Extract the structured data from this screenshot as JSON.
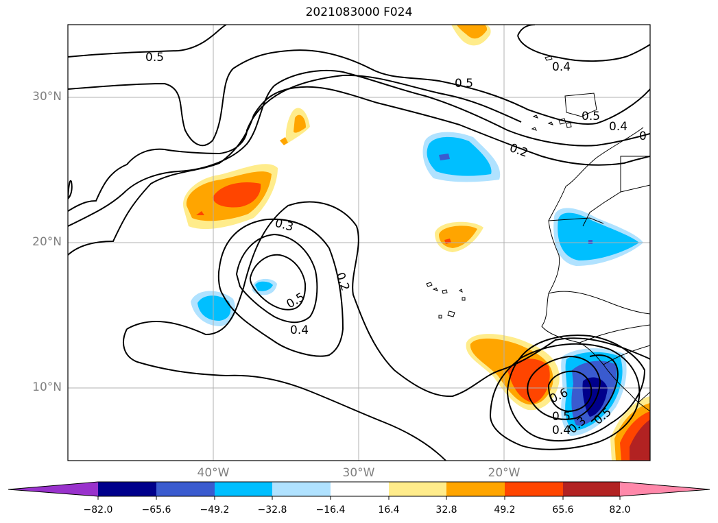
{
  "title": "2021083000 F024",
  "latitude_labels": [
    "30°N",
    "20°N",
    "10°N"
  ],
  "longitude_labels": [
    "40°W",
    "30°W",
    "20°W"
  ],
  "contour_labels": [
    "0.5",
    "0.5",
    "0.4",
    "0.5",
    "0.4",
    "0",
    "0.2",
    "0.3",
    "0.2",
    "0.5",
    "0.4",
    "0.6",
    "0.5",
    "0.4",
    "0.3",
    "0.5"
  ],
  "colorbar": {
    "ticks": [
      "−82.0",
      "−65.6",
      "−49.2",
      "−32.8",
      "−16.4",
      "16.4",
      "32.8",
      "49.2",
      "65.6",
      "82.0"
    ],
    "colors": [
      "#9932cc",
      "#00008b",
      "#3a5bcf",
      "#00bfff",
      "#b0e2ff",
      "#ffffff",
      "#ffec8b",
      "#ffa500",
      "#ff4500",
      "#b22222",
      "#ff88aa"
    ]
  }
}
